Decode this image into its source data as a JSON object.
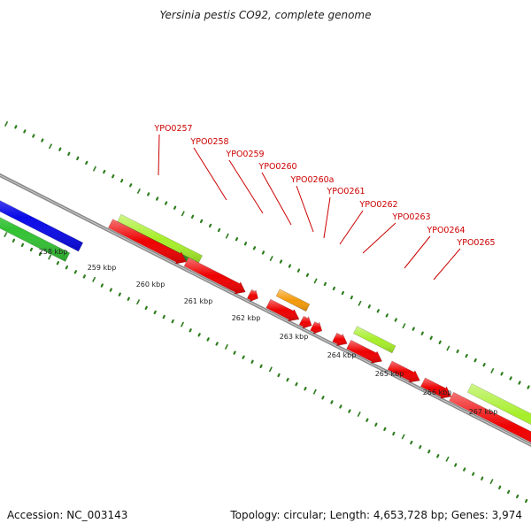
{
  "title": "Yersinia pestis CO92, complete genome",
  "footer": {
    "accession": "Accession: NC_003143",
    "summary": "Topology: circular; Length: 4,653,728 bp; Genes: 3,974"
  },
  "colors": {
    "backbone": "#8a8a8a",
    "tick": "#2e7d1e",
    "gene_red": "#ee0000",
    "gene_orange": "#f39a0a",
    "gene_lightgreen": "#a6ee2a",
    "gene_darkgreen": "#2e8b1e",
    "gene_blue": "#0a0ae8",
    "gene_green": "#33c233",
    "label_red": "#cc0000"
  },
  "scale_labels": [
    {
      "text": "258 kbp",
      "value": 258
    },
    {
      "text": "259 kbp",
      "value": 259
    },
    {
      "text": "260 kbp",
      "value": 260
    },
    {
      "text": "261 kbp",
      "value": 261
    },
    {
      "text": "262 kbp",
      "value": 262
    },
    {
      "text": "263 kbp",
      "value": 263
    },
    {
      "text": "264 kbp",
      "value": 264
    },
    {
      "text": "265 kbp",
      "value": 265
    },
    {
      "text": "266 kbp",
      "value": 266
    },
    {
      "text": "267 kbp",
      "value": 267
    }
  ],
  "gene_labels": [
    {
      "text": "YPO0257"
    },
    {
      "text": "YPO0258"
    },
    {
      "text": "YPO0259"
    },
    {
      "text": "YPO0260"
    },
    {
      "text": "YPO0260a"
    },
    {
      "text": "YPO0261"
    },
    {
      "text": "YPO0262"
    },
    {
      "text": "YPO0263"
    },
    {
      "text": "YPO0264"
    },
    {
      "text": "YPO0265"
    }
  ]
}
